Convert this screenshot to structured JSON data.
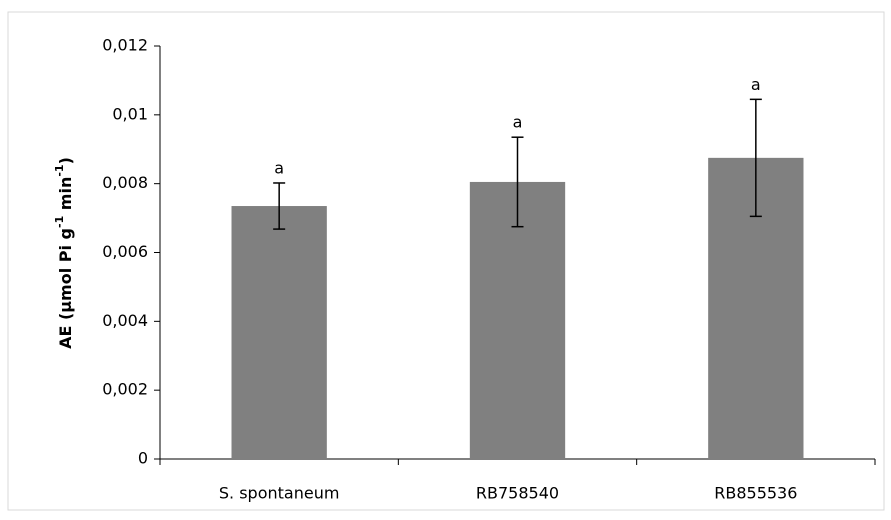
{
  "chart_data": {
    "type": "bar",
    "ylabel_parts": [
      {
        "text": "AE (µmol Pi g"
      },
      {
        "text": "-1",
        "sup": true
      },
      {
        "text": " min"
      },
      {
        "text": "-1",
        "sup": true
      },
      {
        "text": ")"
      }
    ],
    "categories": [
      "S. spontaneum",
      "RB758540",
      "RB855536"
    ],
    "values": [
      0.00735,
      0.00805,
      0.00875
    ],
    "errors": [
      0.00067,
      0.0013,
      0.0017
    ],
    "annotations": [
      "a",
      "a",
      "a"
    ],
    "color": "#808080",
    "ylim": [
      0,
      0.012
    ],
    "yticks": [
      0,
      {
        "value": 0.002,
        "label": "0,002"
      },
      {
        "value": 0.004,
        "label": "0,004"
      },
      {
        "value": 0.006,
        "label": "0,006"
      },
      {
        "value": 0.008,
        "label": "0,008"
      },
      {
        "value": 0.01,
        "label": "0,01"
      },
      {
        "value": 0.012,
        "label": "0,012"
      }
    ],
    "grid": false
  }
}
